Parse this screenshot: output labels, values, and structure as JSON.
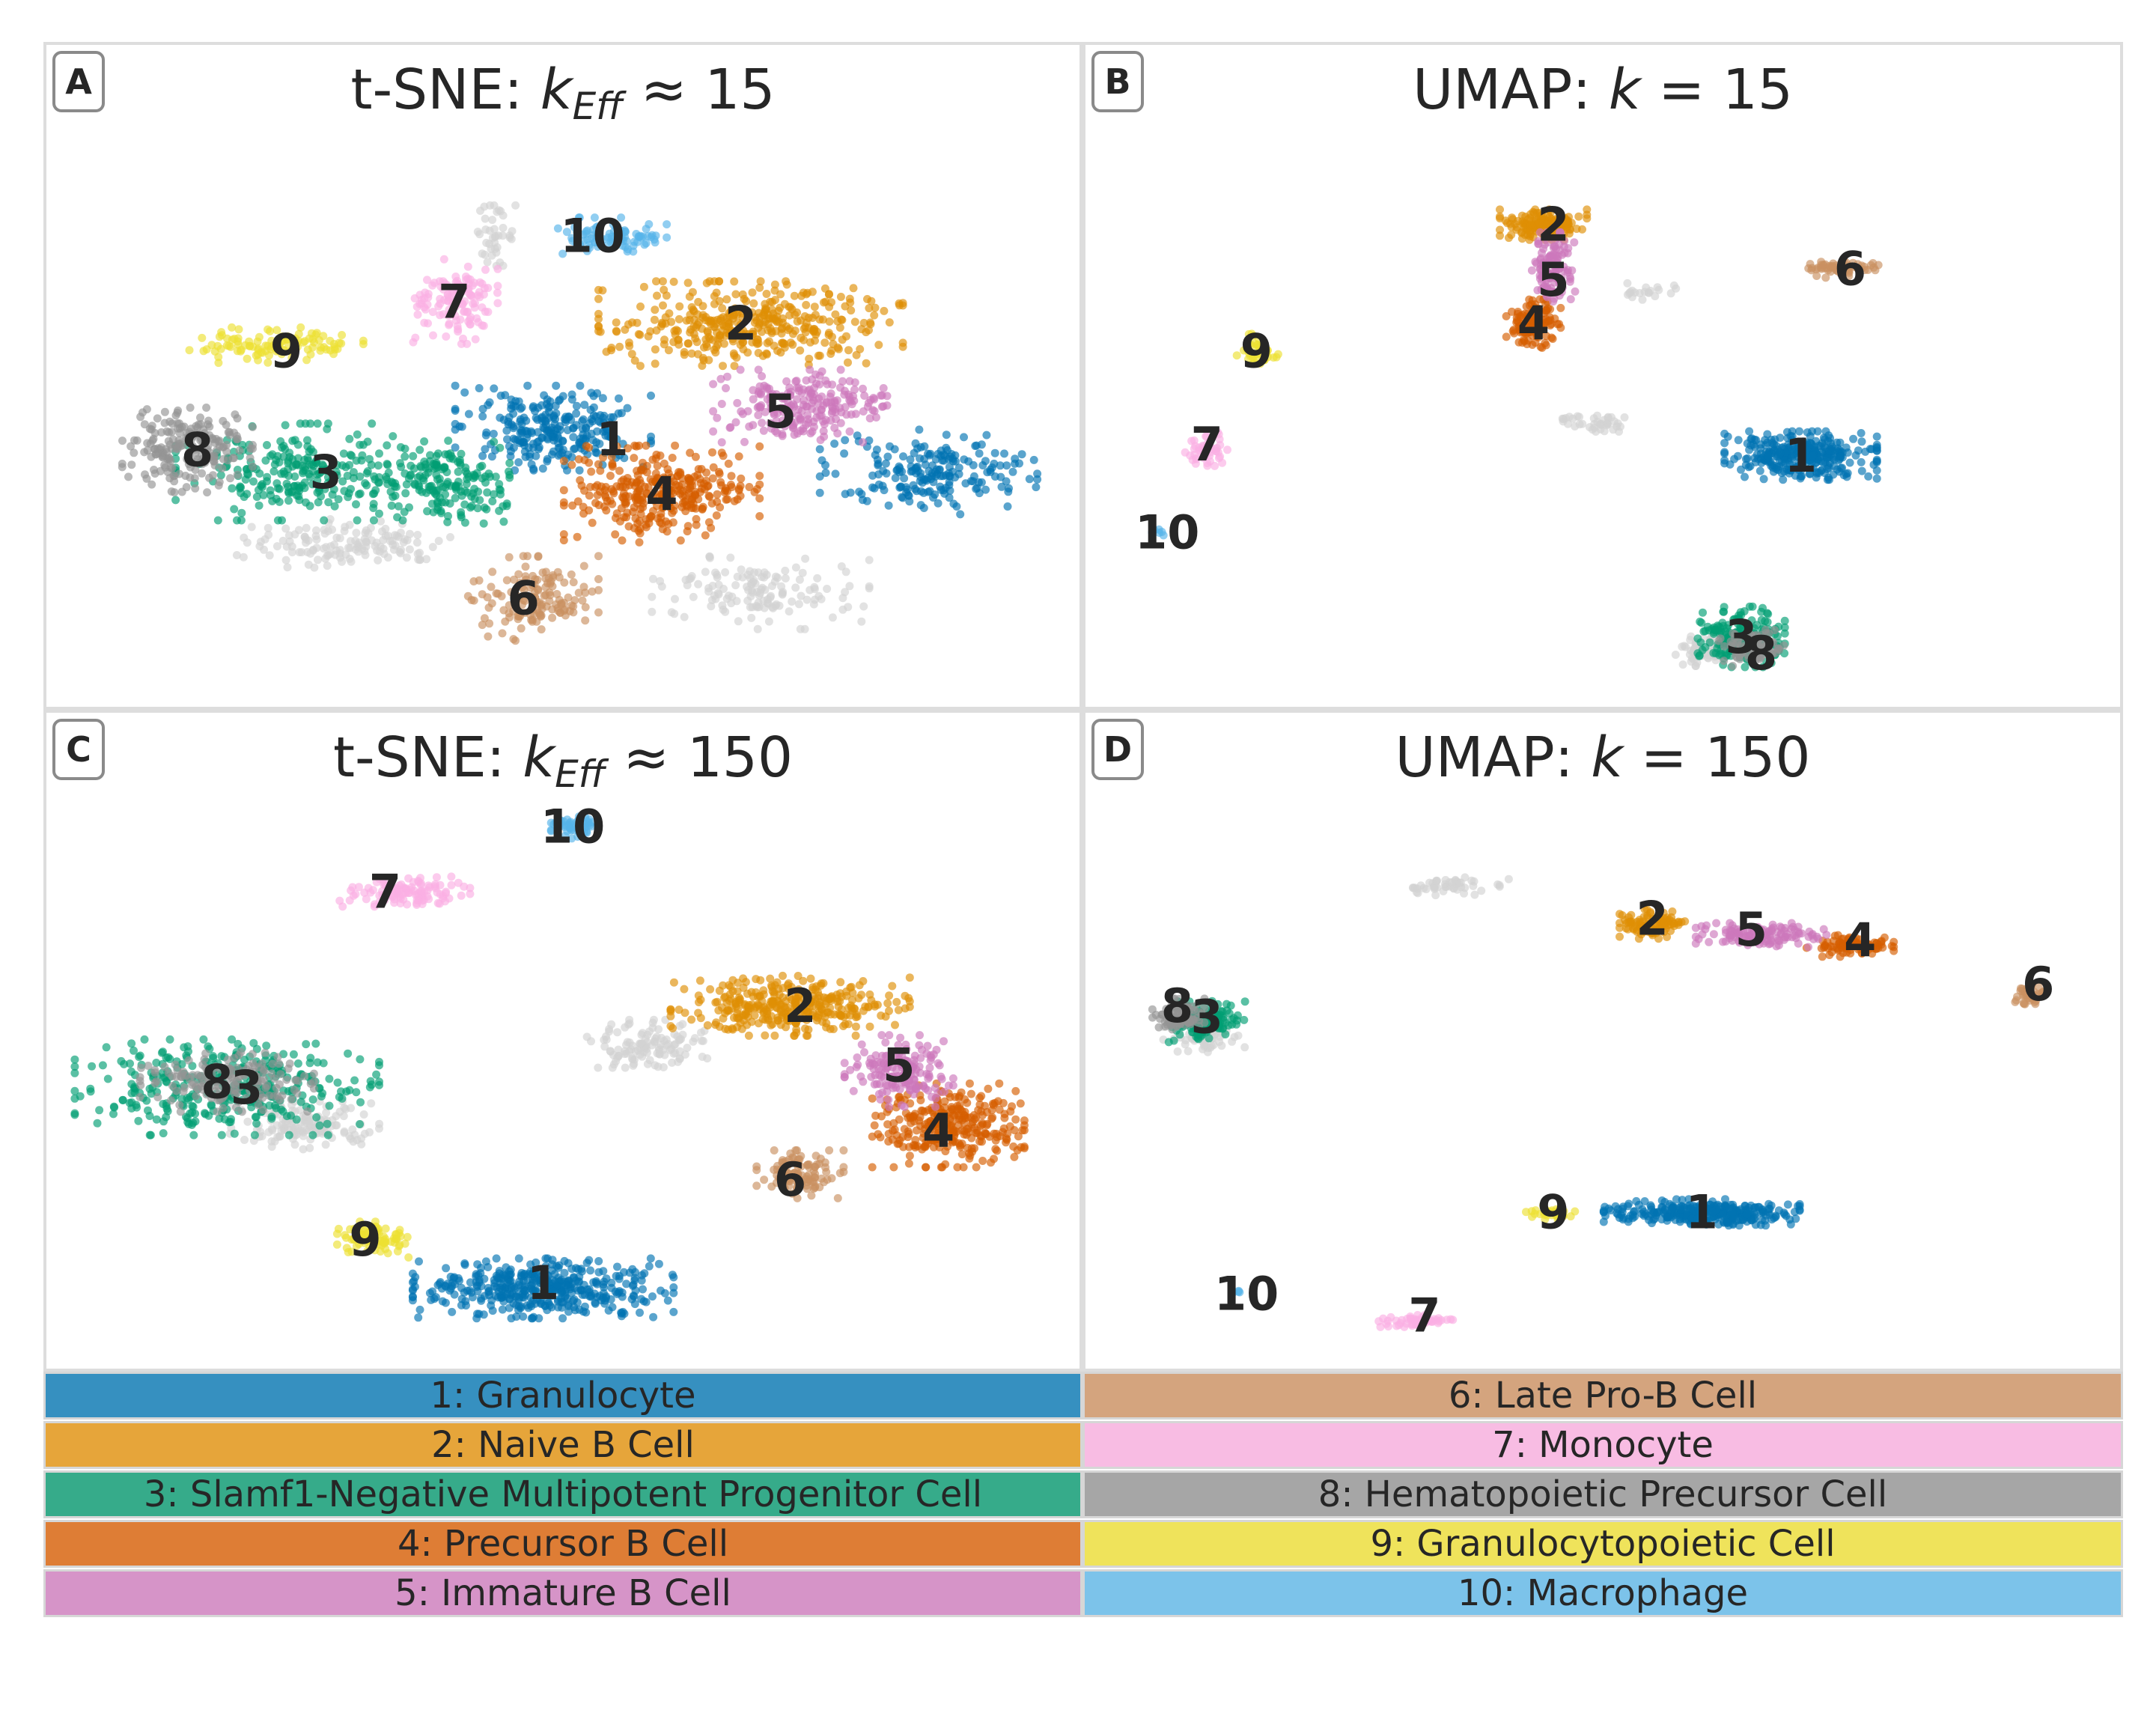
{
  "panels": [
    {
      "id": "A",
      "badge": "A",
      "title_prefix": "t-SNE: ",
      "title_var": "k",
      "title_sub": "Eff",
      "title_rel": " ≈ ",
      "title_val": "15"
    },
    {
      "id": "B",
      "badge": "B",
      "title_prefix": "UMAP: ",
      "title_var": "k",
      "title_sub": "",
      "title_rel": " = ",
      "title_val": "15"
    },
    {
      "id": "C",
      "badge": "C",
      "title_prefix": "t-SNE: ",
      "title_var": "k",
      "title_sub": "Eff",
      "title_rel": " ≈ ",
      "title_val": "150"
    },
    {
      "id": "D",
      "badge": "D",
      "title_prefix": "UMAP: ",
      "title_var": "k",
      "title_sub": "",
      "title_rel": " = ",
      "title_val": "150"
    }
  ],
  "legend": [
    {
      "label": "1: Granulocyte",
      "color": "#3690c0"
    },
    {
      "label": "2: Naive B Cell",
      "color": "#e6a53a"
    },
    {
      "label": "3: Slamf1-Negative Multipotent Progenitor Cell",
      "color": "#36ab8a"
    },
    {
      "label": "4: Precursor B Cell",
      "color": "#de7d35"
    },
    {
      "label": "5: Immature B Cell",
      "color": "#d694c8"
    },
    {
      "label": "6: Late Pro-B Cell",
      "color": "#d4a47e"
    },
    {
      "label": "7: Monocyte",
      "color": "#f8bce3"
    },
    {
      "label": "8: Hematopoietic Precursor Cell",
      "color": "#a6a6a6"
    },
    {
      "label": "9: Granulocytopoietic Cell",
      "color": "#efe35b"
    },
    {
      "label": "10: Macrophage",
      "color": "#7cc3ea"
    }
  ],
  "chart_data": [
    {
      "type": "scatter",
      "panel": "A",
      "title": "t-SNE: k_Eff ≈ 15",
      "axes": "none",
      "cluster_colors": {
        "1": "#0173b2",
        "2": "#de8f05",
        "3": "#029e73",
        "4": "#d55e00",
        "5": "#cc78bc",
        "6": "#ca9161",
        "7": "#fbafe4",
        "8": "#949494",
        "9": "#ece133",
        "10": "#56b4e9",
        "unlabeled": "#d3d3d3"
      },
      "clusters": [
        {
          "label": "1",
          "x": 0.49,
          "y": 0.52,
          "rx": 0.09,
          "ry": 0.07,
          "n": 260
        },
        {
          "label": "1",
          "x": 0.87,
          "y": 0.6,
          "rx": 0.1,
          "ry": 0.07,
          "n": 200
        },
        {
          "label": "2",
          "x": 0.69,
          "y": 0.33,
          "rx": 0.14,
          "ry": 0.07,
          "n": 380
        },
        {
          "label": "3",
          "x": 0.24,
          "y": 0.6,
          "rx": 0.12,
          "ry": 0.08,
          "n": 260
        },
        {
          "label": "3",
          "x": 0.38,
          "y": 0.62,
          "rx": 0.06,
          "ry": 0.07,
          "n": 160
        },
        {
          "label": "4",
          "x": 0.6,
          "y": 0.64,
          "rx": 0.09,
          "ry": 0.08,
          "n": 320
        },
        {
          "label": "5",
          "x": 0.74,
          "y": 0.48,
          "rx": 0.08,
          "ry": 0.06,
          "n": 220
        },
        {
          "label": "6",
          "x": 0.47,
          "y": 0.83,
          "rx": 0.06,
          "ry": 0.07,
          "n": 140
        },
        {
          "label": "7",
          "x": 0.39,
          "y": 0.29,
          "rx": 0.04,
          "ry": 0.07,
          "n": 130
        },
        {
          "label": "8",
          "x": 0.12,
          "y": 0.56,
          "rx": 0.06,
          "ry": 0.07,
          "n": 200
        },
        {
          "label": "9",
          "x": 0.21,
          "y": 0.37,
          "rx": 0.08,
          "ry": 0.03,
          "n": 110
        },
        {
          "label": "10",
          "x": 0.55,
          "y": 0.17,
          "rx": 0.05,
          "ry": 0.03,
          "n": 90
        },
        {
          "label": "unlabeled",
          "x": 0.28,
          "y": 0.73,
          "rx": 0.1,
          "ry": 0.04,
          "n": 140
        },
        {
          "label": "unlabeled",
          "x": 0.7,
          "y": 0.82,
          "rx": 0.1,
          "ry": 0.06,
          "n": 140
        },
        {
          "label": "unlabeled",
          "x": 0.43,
          "y": 0.17,
          "rx": 0.02,
          "ry": 0.05,
          "n": 40
        }
      ],
      "annotations": [
        {
          "text": "1",
          "x": 0.55,
          "y": 0.54
        },
        {
          "text": "2",
          "x": 0.68,
          "y": 0.33
        },
        {
          "text": "3",
          "x": 0.26,
          "y": 0.6
        },
        {
          "text": "4",
          "x": 0.6,
          "y": 0.64
        },
        {
          "text": "5",
          "x": 0.72,
          "y": 0.49
        },
        {
          "text": "6",
          "x": 0.46,
          "y": 0.83
        },
        {
          "text": "7",
          "x": 0.39,
          "y": 0.29
        },
        {
          "text": "8",
          "x": 0.13,
          "y": 0.56
        },
        {
          "text": "9",
          "x": 0.22,
          "y": 0.38
        },
        {
          "text": "10",
          "x": 0.53,
          "y": 0.17
        }
      ]
    },
    {
      "type": "scatter",
      "panel": "B",
      "title": "UMAP: k = 15",
      "axes": "none",
      "clusters": [
        {
          "label": "1",
          "x": 0.7,
          "y": 0.57,
          "rx": 0.07,
          "ry": 0.04,
          "n": 320
        },
        {
          "label": "2",
          "x": 0.44,
          "y": 0.15,
          "rx": 0.04,
          "ry": 0.025,
          "n": 160
        },
        {
          "label": "3",
          "x": 0.64,
          "y": 0.9,
          "rx": 0.04,
          "ry": 0.05,
          "n": 200
        },
        {
          "label": "4",
          "x": 0.43,
          "y": 0.33,
          "rx": 0.025,
          "ry": 0.04,
          "n": 120
        },
        {
          "label": "5",
          "x": 0.45,
          "y": 0.23,
          "rx": 0.02,
          "ry": 0.06,
          "n": 120
        },
        {
          "label": "6",
          "x": 0.74,
          "y": 0.23,
          "rx": 0.035,
          "ry": 0.015,
          "n": 60
        },
        {
          "label": "7",
          "x": 0.1,
          "y": 0.56,
          "rx": 0.02,
          "ry": 0.03,
          "n": 50
        },
        {
          "label": "8",
          "x": 0.65,
          "y": 0.92,
          "rx": 0.03,
          "ry": 0.03,
          "n": 80
        },
        {
          "label": "9",
          "x": 0.15,
          "y": 0.38,
          "rx": 0.02,
          "ry": 0.03,
          "n": 40
        },
        {
          "label": "10",
          "x": 0.05,
          "y": 0.71,
          "rx": 0.01,
          "ry": 0.01,
          "n": 6
        },
        {
          "label": "unlabeled",
          "x": 0.5,
          "y": 0.51,
          "rx": 0.04,
          "ry": 0.015,
          "n": 40
        },
        {
          "label": "unlabeled",
          "x": 0.55,
          "y": 0.27,
          "rx": 0.03,
          "ry": 0.015,
          "n": 20
        },
        {
          "label": "unlabeled",
          "x": 0.6,
          "y": 0.92,
          "rx": 0.03,
          "ry": 0.03,
          "n": 60
        }
      ],
      "annotations": [
        {
          "text": "1",
          "x": 0.7,
          "y": 0.57
        },
        {
          "text": "2",
          "x": 0.45,
          "y": 0.15
        },
        {
          "text": "3",
          "x": 0.64,
          "y": 0.9
        },
        {
          "text": "4",
          "x": 0.43,
          "y": 0.33
        },
        {
          "text": "5",
          "x": 0.45,
          "y": 0.25
        },
        {
          "text": "6",
          "x": 0.75,
          "y": 0.23
        },
        {
          "text": "7",
          "x": 0.1,
          "y": 0.55
        },
        {
          "text": "8",
          "x": 0.66,
          "y": 0.93
        },
        {
          "text": "9",
          "x": 0.15,
          "y": 0.38
        },
        {
          "text": "10",
          "x": 0.06,
          "y": 0.71
        }
      ]
    },
    {
      "type": "scatter",
      "panel": "C",
      "title": "t-SNE: k_Eff ≈ 150",
      "axes": "none",
      "clusters": [
        {
          "label": "1",
          "x": 0.48,
          "y": 0.88,
          "rx": 0.12,
          "ry": 0.05,
          "n": 420
        },
        {
          "label": "2",
          "x": 0.73,
          "y": 0.36,
          "rx": 0.11,
          "ry": 0.05,
          "n": 340
        },
        {
          "label": "3",
          "x": 0.16,
          "y": 0.51,
          "rx": 0.14,
          "ry": 0.08,
          "n": 360
        },
        {
          "label": "4",
          "x": 0.89,
          "y": 0.58,
          "rx": 0.07,
          "ry": 0.07,
          "n": 300
        },
        {
          "label": "5",
          "x": 0.84,
          "y": 0.48,
          "rx": 0.05,
          "ry": 0.06,
          "n": 160
        },
        {
          "label": "6",
          "x": 0.74,
          "y": 0.67,
          "rx": 0.04,
          "ry": 0.04,
          "n": 110
        },
        {
          "label": "7",
          "x": 0.34,
          "y": 0.15,
          "rx": 0.06,
          "ry": 0.025,
          "n": 110
        },
        {
          "label": "8",
          "x": 0.16,
          "y": 0.5,
          "rx": 0.08,
          "ry": 0.05,
          "n": 160
        },
        {
          "label": "9",
          "x": 0.31,
          "y": 0.79,
          "rx": 0.035,
          "ry": 0.03,
          "n": 80
        },
        {
          "label": "10",
          "x": 0.51,
          "y": 0.03,
          "rx": 0.02,
          "ry": 0.02,
          "n": 50
        },
        {
          "label": "unlabeled",
          "x": 0.58,
          "y": 0.43,
          "rx": 0.06,
          "ry": 0.04,
          "n": 120
        },
        {
          "label": "unlabeled",
          "x": 0.24,
          "y": 0.58,
          "rx": 0.07,
          "ry": 0.04,
          "n": 140
        }
      ],
      "annotations": [
        {
          "text": "1",
          "x": 0.48,
          "y": 0.87
        },
        {
          "text": "2",
          "x": 0.74,
          "y": 0.36
        },
        {
          "text": "3",
          "x": 0.18,
          "y": 0.51
        },
        {
          "text": "4",
          "x": 0.88,
          "y": 0.59
        },
        {
          "text": "5",
          "x": 0.84,
          "y": 0.47
        },
        {
          "text": "6",
          "x": 0.73,
          "y": 0.68
        },
        {
          "text": "7",
          "x": 0.32,
          "y": 0.15
        },
        {
          "text": "8",
          "x": 0.15,
          "y": 0.5
        },
        {
          "text": "9",
          "x": 0.3,
          "y": 0.79
        },
        {
          "text": "10",
          "x": 0.51,
          "y": 0.03
        }
      ]
    },
    {
      "type": "scatter",
      "panel": "D",
      "title": "UMAP: k = 150",
      "axes": "none",
      "clusters": [
        {
          "label": "1",
          "x": 0.6,
          "y": 0.74,
          "rx": 0.09,
          "ry": 0.022,
          "n": 320
        },
        {
          "label": "2",
          "x": 0.55,
          "y": 0.21,
          "rx": 0.03,
          "ry": 0.025,
          "n": 100
        },
        {
          "label": "3",
          "x": 0.1,
          "y": 0.39,
          "rx": 0.035,
          "ry": 0.035,
          "n": 140
        },
        {
          "label": "4",
          "x": 0.75,
          "y": 0.25,
          "rx": 0.04,
          "ry": 0.018,
          "n": 90
        },
        {
          "label": "5",
          "x": 0.66,
          "y": 0.23,
          "rx": 0.06,
          "ry": 0.02,
          "n": 120
        },
        {
          "label": "6",
          "x": 0.93,
          "y": 0.34,
          "rx": 0.015,
          "ry": 0.02,
          "n": 40
        },
        {
          "label": "7",
          "x": 0.31,
          "y": 0.94,
          "rx": 0.035,
          "ry": 0.01,
          "n": 50
        },
        {
          "label": "8",
          "x": 0.07,
          "y": 0.38,
          "rx": 0.025,
          "ry": 0.03,
          "n": 90
        },
        {
          "label": "9",
          "x": 0.45,
          "y": 0.74,
          "rx": 0.025,
          "ry": 0.012,
          "n": 40
        },
        {
          "label": "10",
          "x": 0.13,
          "y": 0.89,
          "rx": 0.006,
          "ry": 0.006,
          "n": 4
        },
        {
          "label": "unlabeled",
          "x": 0.35,
          "y": 0.14,
          "rx": 0.05,
          "ry": 0.015,
          "n": 50
        },
        {
          "label": "unlabeled",
          "x": 0.1,
          "y": 0.42,
          "rx": 0.04,
          "ry": 0.025,
          "n": 60
        }
      ],
      "annotations": [
        {
          "text": "1",
          "x": 0.6,
          "y": 0.74
        },
        {
          "text": "2",
          "x": 0.55,
          "y": 0.2
        },
        {
          "text": "3",
          "x": 0.1,
          "y": 0.38
        },
        {
          "text": "4",
          "x": 0.76,
          "y": 0.24
        },
        {
          "text": "5",
          "x": 0.65,
          "y": 0.22
        },
        {
          "text": "6",
          "x": 0.94,
          "y": 0.32
        },
        {
          "text": "7",
          "x": 0.32,
          "y": 0.93
        },
        {
          "text": "8",
          "x": 0.07,
          "y": 0.36
        },
        {
          "text": "9",
          "x": 0.45,
          "y": 0.74
        },
        {
          "text": "10",
          "x": 0.14,
          "y": 0.89
        }
      ]
    }
  ]
}
